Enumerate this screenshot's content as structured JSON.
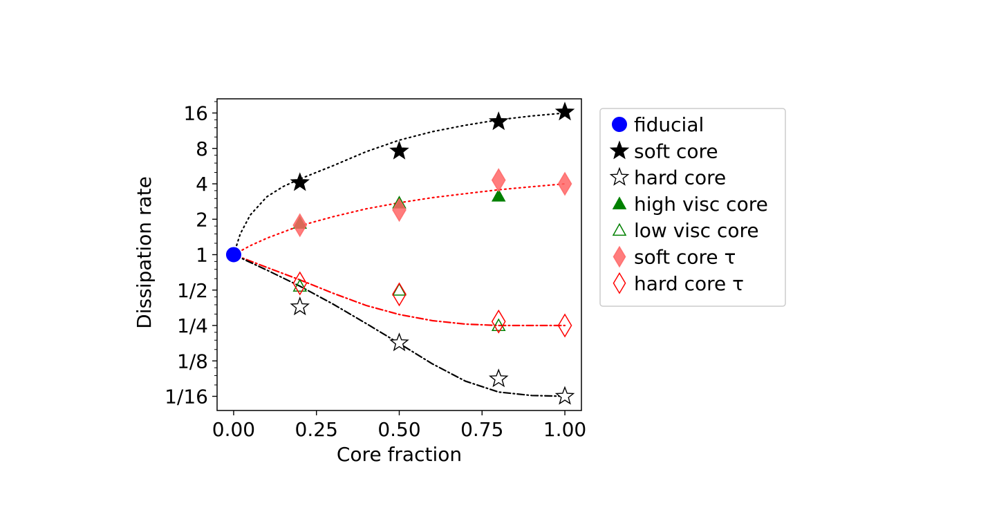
{
  "chart_data": {
    "type": "scatter",
    "xlabel": "Core fraction",
    "ylabel": "Dissipation rate",
    "xlim": [
      -0.05,
      1.05
    ],
    "ylim_log2": [
      -4.4,
      4.4
    ],
    "y_scale": "log2",
    "x_ticks": [
      {
        "value": 0.0,
        "label": "0.00"
      },
      {
        "value": 0.25,
        "label": "0.25"
      },
      {
        "value": 0.5,
        "label": "0.50"
      },
      {
        "value": 0.75,
        "label": "0.75"
      },
      {
        "value": 1.0,
        "label": "1.00"
      }
    ],
    "y_ticks": [
      {
        "value": 16,
        "label": "16"
      },
      {
        "value": 8,
        "label": "8"
      },
      {
        "value": 4,
        "label": "4"
      },
      {
        "value": 2,
        "label": "2"
      },
      {
        "value": 1,
        "label": "1"
      },
      {
        "value": 0.5,
        "label": "1/2"
      },
      {
        "value": 0.25,
        "label": "1/4"
      },
      {
        "value": 0.125,
        "label": "1/8"
      },
      {
        "value": 0.0625,
        "label": "1/16"
      }
    ],
    "series": [
      {
        "name": "fiducial",
        "marker": "circle",
        "color": "#0000ff",
        "filled": true,
        "x": [
          0.0
        ],
        "y": [
          1.0
        ]
      },
      {
        "name": "soft core",
        "marker": "star",
        "color": "#000000",
        "filled": true,
        "x": [
          0.2,
          0.5,
          0.8,
          1.0
        ],
        "y": [
          4.1,
          7.6,
          13.5,
          16.3
        ]
      },
      {
        "name": "hard core",
        "marker": "star",
        "color": "#000000",
        "filled": false,
        "x": [
          0.2,
          0.5,
          0.8,
          1.0
        ],
        "y": [
          0.36,
          0.178,
          0.088,
          0.0625
        ]
      },
      {
        "name": "high visc core",
        "marker": "triangle",
        "color": "#008000",
        "filled": true,
        "x": [
          0.2,
          0.5,
          0.8
        ],
        "y": [
          1.85,
          2.75,
          3.15
        ]
      },
      {
        "name": "low visc core",
        "marker": "triangle",
        "color": "#008000",
        "filled": false,
        "x": [
          0.2,
          0.5,
          0.8
        ],
        "y": [
          0.54,
          0.5,
          0.25
        ]
      },
      {
        "name": "soft core τ",
        "marker": "diamond",
        "color": "#ff6666",
        "filled": true,
        "x": [
          0.2,
          0.5,
          0.8,
          1.0
        ],
        "y": [
          1.78,
          2.4,
          4.3,
          4.0
        ]
      },
      {
        "name": "hard core τ",
        "marker": "diamond",
        "color": "#ff0000",
        "filled": false,
        "x": [
          0.2,
          0.5,
          0.8,
          1.0
        ],
        "y": [
          0.57,
          0.46,
          0.27,
          0.25
        ]
      }
    ],
    "fits": [
      {
        "name": "soft core fit",
        "style": "dotted",
        "color": "#000000",
        "x": [
          0.0,
          0.02,
          0.05,
          0.1,
          0.15,
          0.2,
          0.3,
          0.4,
          0.5,
          0.6,
          0.7,
          0.8,
          0.9,
          1.0
        ],
        "y": [
          1.0,
          1.5,
          2.17,
          3.1,
          3.8,
          4.4,
          5.7,
          7.5,
          9.4,
          11.1,
          12.6,
          14.0,
          15.1,
          16.0
        ]
      },
      {
        "name": "soft core τ fit",
        "style": "dotted",
        "color": "#ff0000",
        "x": [
          0.0,
          0.05,
          0.1,
          0.2,
          0.3,
          0.4,
          0.5,
          0.6,
          0.7,
          0.8,
          0.9,
          1.0
        ],
        "y": [
          1.0,
          1.19,
          1.38,
          1.76,
          2.1,
          2.45,
          2.76,
          3.05,
          3.3,
          3.56,
          3.78,
          4.0
        ]
      },
      {
        "name": "hard core τ fit",
        "style": "dashdot",
        "color": "#ff0000",
        "x": [
          0.0,
          0.1,
          0.2,
          0.3,
          0.4,
          0.5,
          0.6,
          0.7,
          0.8,
          0.9,
          1.0
        ],
        "y": [
          1.0,
          0.78,
          0.61,
          0.47,
          0.37,
          0.31,
          0.275,
          0.257,
          0.25,
          0.25,
          0.25
        ]
      },
      {
        "name": "hard core fit",
        "style": "dashdot",
        "color": "#000000",
        "x": [
          0.0,
          0.1,
          0.2,
          0.3,
          0.4,
          0.5,
          0.6,
          0.7,
          0.8,
          0.9,
          1.0
        ],
        "y": [
          1.0,
          0.74,
          0.54,
          0.38,
          0.26,
          0.176,
          0.118,
          0.084,
          0.068,
          0.0635,
          0.0625
        ]
      }
    ],
    "legend": {
      "position": "outside-right",
      "entries": [
        {
          "label": "fiducial",
          "marker": "circle",
          "color": "#0000ff",
          "filled": true
        },
        {
          "label": "soft core",
          "marker": "star",
          "color": "#000000",
          "filled": true
        },
        {
          "label": "hard core",
          "marker": "star",
          "color": "#000000",
          "filled": false
        },
        {
          "label": "high visc core",
          "marker": "triangle",
          "color": "#008000",
          "filled": true
        },
        {
          "label": "low visc core",
          "marker": "triangle",
          "color": "#008000",
          "filled": false
        },
        {
          "label": "soft core τ",
          "marker": "diamond",
          "color": "#ff6666",
          "filled": true
        },
        {
          "label": "hard core τ",
          "marker": "diamond",
          "color": "#ff0000",
          "filled": false
        }
      ]
    }
  }
}
